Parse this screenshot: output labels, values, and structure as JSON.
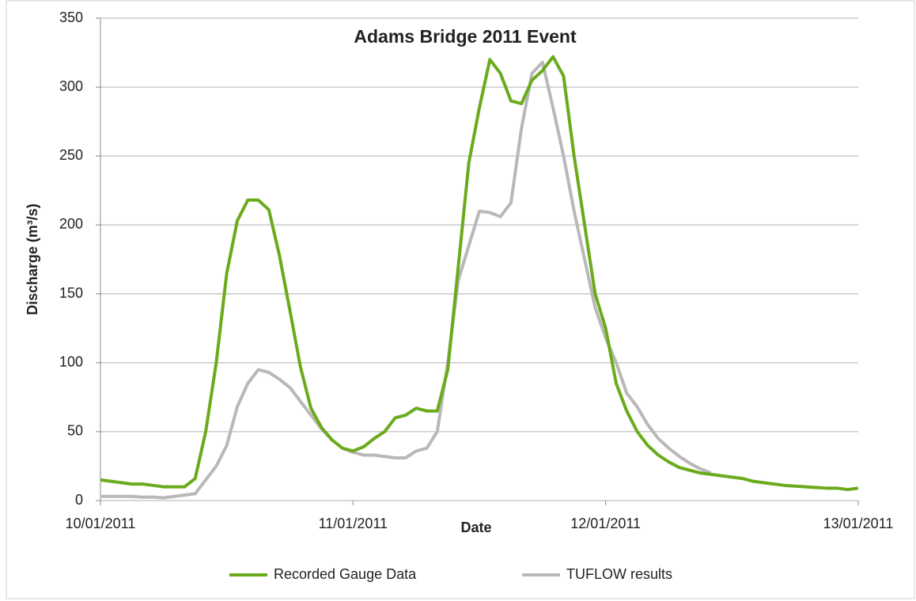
{
  "chart_data": {
    "type": "line",
    "title": "Adams Bridge 2011 Event",
    "xlabel": "Date",
    "ylabel": "Discharge (m³/s)",
    "x": [
      0,
      1,
      2,
      3,
      4,
      5,
      6,
      7,
      8,
      9,
      10,
      11,
      12,
      13,
      14,
      15,
      16,
      17,
      18,
      19,
      20,
      21,
      22,
      23,
      24,
      25,
      26,
      27,
      28,
      29,
      30,
      31,
      32,
      33,
      34,
      35,
      36,
      37,
      38,
      39,
      40,
      41,
      42,
      43,
      44,
      45,
      46,
      47,
      48,
      49,
      50,
      51,
      52,
      53,
      54,
      55,
      56,
      57,
      58,
      59,
      60,
      61,
      62,
      63,
      64,
      65,
      66,
      67,
      68,
      69,
      70,
      71,
      72
    ],
    "xlim": [
      0,
      72
    ],
    "xticks": [
      {
        "value": 0,
        "label": "10/01/2011"
      },
      {
        "value": 24,
        "label": "11/01/2011"
      },
      {
        "value": 48,
        "label": "12/01/2011"
      },
      {
        "value": 72,
        "label": "13/01/2011"
      }
    ],
    "ylim": [
      0,
      350
    ],
    "yticks": [
      0,
      50,
      100,
      150,
      200,
      250,
      300,
      350
    ],
    "grid": true,
    "legend": "bottom",
    "series": [
      {
        "name": "Recorded Gauge Data",
        "color": "#6aab1c",
        "values": [
          15,
          14,
          13,
          12,
          12,
          11,
          10,
          10,
          10,
          16,
          50,
          100,
          165,
          203,
          218,
          218,
          211,
          178,
          138,
          97,
          67,
          53,
          44,
          38,
          36,
          39,
          45,
          50,
          60,
          62,
          67,
          65,
          65,
          95,
          170,
          245,
          285,
          320,
          310,
          290,
          288,
          305,
          312,
          322,
          308,
          250,
          200,
          150,
          125,
          85,
          65,
          50,
          40,
          33,
          28,
          24,
          22,
          20,
          19,
          18,
          17,
          16,
          14,
          13,
          12,
          11,
          10.5,
          10,
          9.5,
          9,
          9,
          8,
          9
        ]
      },
      {
        "name": "TUFLOW results",
        "color": "#b8b8b8",
        "values": [
          3,
          3,
          3,
          3,
          2.5,
          2.5,
          2,
          3,
          4,
          5,
          15,
          25,
          40,
          68,
          85,
          95,
          93,
          88,
          82,
          72,
          62,
          52,
          44,
          38,
          35,
          33,
          33,
          32,
          31,
          31,
          36,
          38,
          50,
          100,
          160,
          185,
          210,
          209,
          206,
          216,
          270,
          310,
          318,
          285,
          250,
          210,
          175,
          140,
          118,
          100,
          78,
          68,
          55,
          45,
          38,
          32,
          27,
          23,
          20,
          null,
          null,
          null,
          null,
          null,
          null,
          null,
          null,
          null,
          null,
          null,
          null,
          null,
          null
        ]
      }
    ]
  }
}
